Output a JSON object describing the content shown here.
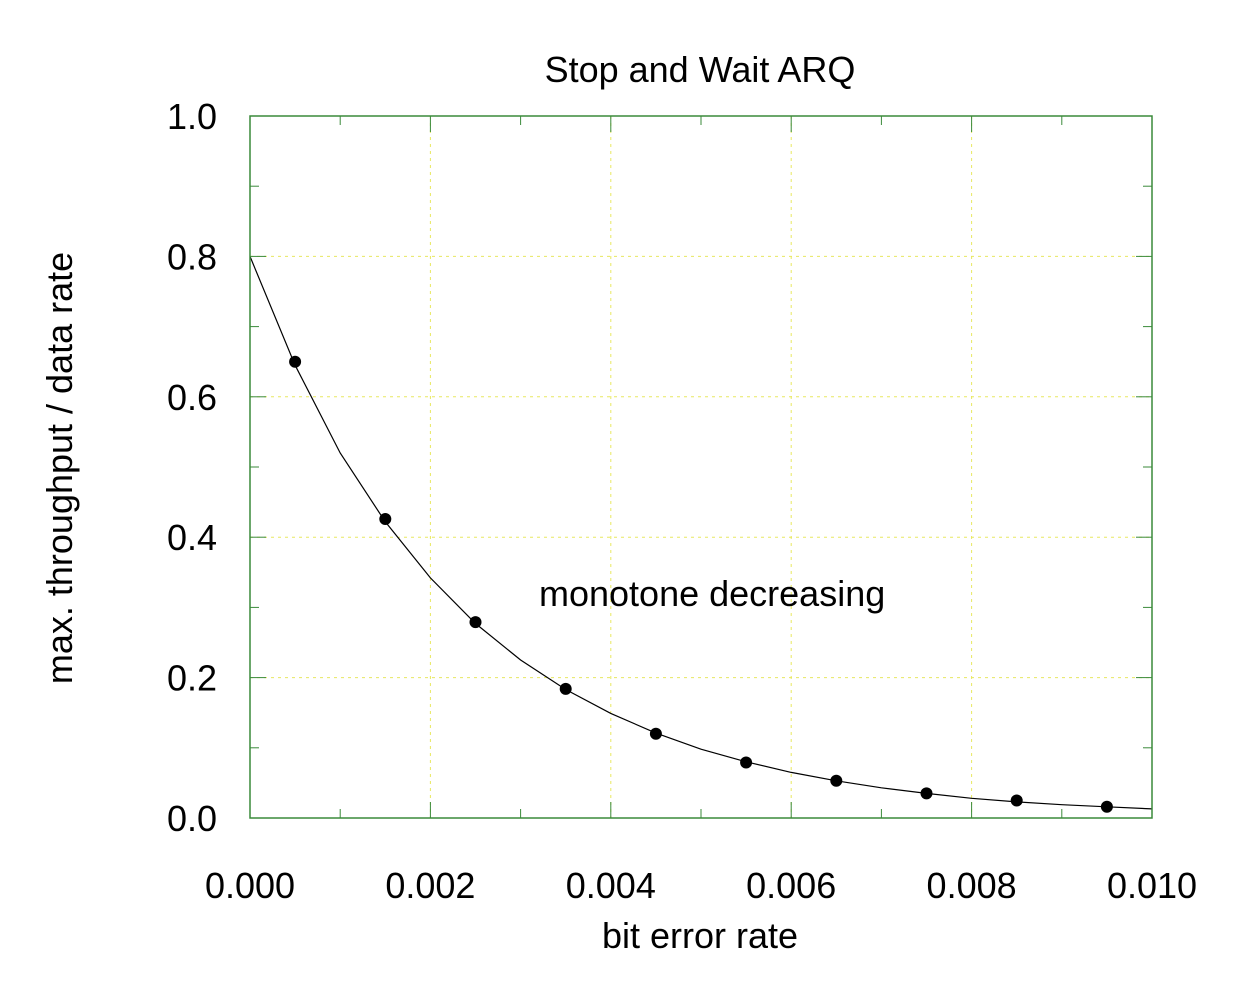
{
  "chart_data": {
    "type": "scatter",
    "title": "Stop and Wait ARQ",
    "xlabel": "bit error rate",
    "ylabel": "max. throughput / data rate",
    "xlim": [
      0.0,
      0.01
    ],
    "ylim": [
      0.0,
      1.0
    ],
    "xticks": [
      0.0,
      0.002,
      0.004,
      0.006,
      0.008,
      0.01
    ],
    "xtick_labels": [
      "0.000",
      "0.002",
      "0.004",
      "0.006",
      "0.008",
      "0.010"
    ],
    "yticks": [
      0.0,
      0.2,
      0.4,
      0.6,
      0.8,
      1.0
    ],
    "ytick_labels": [
      "0.0",
      "0.2",
      "0.4",
      "0.6",
      "0.8",
      "1.0"
    ],
    "grid": true,
    "annotation": "monotone decreasing",
    "curve": {
      "x": [
        0.0,
        0.0005,
        0.001,
        0.0015,
        0.002,
        0.0025,
        0.003,
        0.0035,
        0.004,
        0.0045,
        0.005,
        0.0055,
        0.006,
        0.0065,
        0.007,
        0.0075,
        0.008,
        0.0085,
        0.009,
        0.0095,
        0.01
      ],
      "y": [
        0.8,
        0.645,
        0.52,
        0.422,
        0.342,
        0.277,
        0.225,
        0.183,
        0.149,
        0.121,
        0.098,
        0.08,
        0.065,
        0.053,
        0.043,
        0.035,
        0.028,
        0.023,
        0.019,
        0.016,
        0.013
      ]
    },
    "points": {
      "x": [
        0.0005,
        0.0015,
        0.0025,
        0.0035,
        0.0045,
        0.0055,
        0.0065,
        0.0075,
        0.0085,
        0.0095
      ],
      "y": [
        0.65,
        0.426,
        0.279,
        0.184,
        0.12,
        0.079,
        0.053,
        0.035,
        0.025,
        0.016
      ]
    },
    "colors": {
      "frame": "#3a8a3a",
      "grid": "#e8e860",
      "curve": "#000000",
      "points": "#000000"
    }
  }
}
